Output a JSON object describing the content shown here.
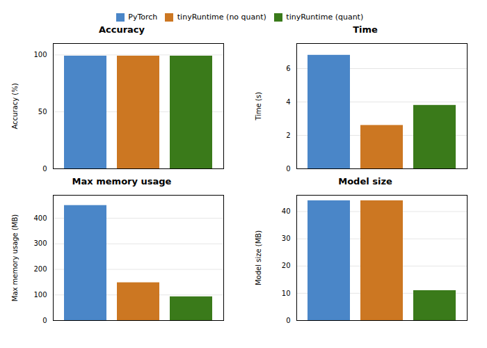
{
  "chart_data": [
    {
      "type": "bar",
      "title": "Accuracy",
      "ylabel": "Accuracy (%)",
      "categories": [
        null
      ],
      "series": [
        {
          "name": "PyTorch",
          "color": "#4a86c8",
          "values": [
            99.0
          ]
        },
        {
          "name": "tinyRuntime (no quant)",
          "color": "#cc7722",
          "values": [
            99.0
          ]
        },
        {
          "name": "tinyRuntime (quant)",
          "color": "#3a7a1a",
          "values": [
            99.0
          ]
        }
      ],
      "ylim": [
        0,
        110
      ],
      "yticks": [
        0,
        50,
        100
      ],
      "grid": true,
      "tick_labels": "y",
      "legend": "top"
    },
    {
      "type": "bar",
      "title": "Time",
      "ylabel": "Time (s)",
      "categories": [
        null
      ],
      "series": [
        {
          "name": "PyTorch",
          "color": "#4a86c8",
          "values": [
            6.8
          ]
        },
        {
          "name": "tinyRuntime (no quant)",
          "color": "#cc7722",
          "values": [
            2.6
          ]
        },
        {
          "name": "tinyRuntime (quant)",
          "color": "#3a7a1a",
          "values": [
            3.8
          ]
        }
      ],
      "ylim": [
        0,
        7.5
      ],
      "yticks": [
        0,
        2,
        4,
        6
      ],
      "grid": true,
      "tick_labels": "y",
      "legend": "top"
    },
    {
      "type": "bar",
      "title": "Max memory usage",
      "ylabel": "Max memory usage (MB)",
      "categories": [
        null
      ],
      "series": [
        {
          "name": "PyTorch",
          "color": "#4a86c8",
          "values": [
            450
          ]
        },
        {
          "name": "tinyRuntime (no quant)",
          "color": "#cc7722",
          "values": [
            148
          ]
        },
        {
          "name": "tinyRuntime (quant)",
          "color": "#3a7a1a",
          "values": [
            93
          ]
        }
      ],
      "ylim": [
        0,
        490
      ],
      "yticks": [
        0,
        100,
        200,
        300,
        400
      ],
      "grid": true,
      "tick_labels": "y",
      "legend": "top"
    },
    {
      "type": "bar",
      "title": "Model size",
      "ylabel": "Model size (MB)",
      "categories": [
        null
      ],
      "series": [
        {
          "name": "PyTorch",
          "color": "#4a86c8",
          "values": [
            44
          ]
        },
        {
          "name": "tinyRuntime (no quant)",
          "color": "#cc7722",
          "values": [
            44
          ]
        },
        {
          "name": "tinyRuntime (quant)",
          "color": "#3a7a1a",
          "values": [
            11
          ]
        }
      ],
      "ylim": [
        0,
        46
      ],
      "yticks": [
        0,
        10,
        20,
        30,
        40
      ],
      "grid": true,
      "tick_labels": "y",
      "legend": "top"
    }
  ]
}
